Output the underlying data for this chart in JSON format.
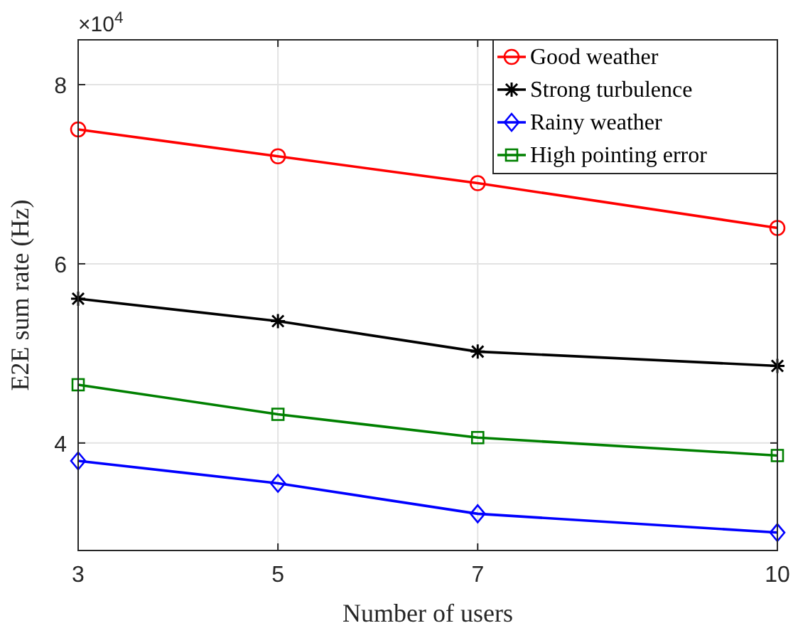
{
  "chart_data": {
    "type": "line",
    "xlabel": "Number of users",
    "ylabel": "E2E sum rate (Hz)",
    "annotations": [
      "×10$^{4}$"
    ],
    "x": [
      3,
      5,
      7,
      10
    ],
    "xlim": [
      3,
      10
    ],
    "xticks": [
      3,
      5,
      7,
      10
    ],
    "ylim": [
      2.8,
      8.5
    ],
    "yticks": [
      4,
      6,
      8
    ],
    "grid": true,
    "legend": "top right",
    "line_style": "solid",
    "series": [
      {
        "name": "Good weather",
        "color": "#ff0000",
        "marker": "circle",
        "values": [
          7.5,
          7.2,
          6.9,
          6.4
        ]
      },
      {
        "name": "Strong turbulence",
        "color": "#000000",
        "marker": "cross",
        "values": [
          5.61,
          5.36,
          5.02,
          4.86
        ]
      },
      {
        "name": "Rainy weather",
        "color": "#0000ff",
        "marker": "diamond",
        "values": [
          3.8,
          3.55,
          3.21,
          3.0
        ]
      },
      {
        "name": "High pointing error",
        "color": "#008000",
        "marker": "square",
        "values": [
          4.65,
          4.32,
          4.06,
          3.86
        ]
      }
    ]
  }
}
